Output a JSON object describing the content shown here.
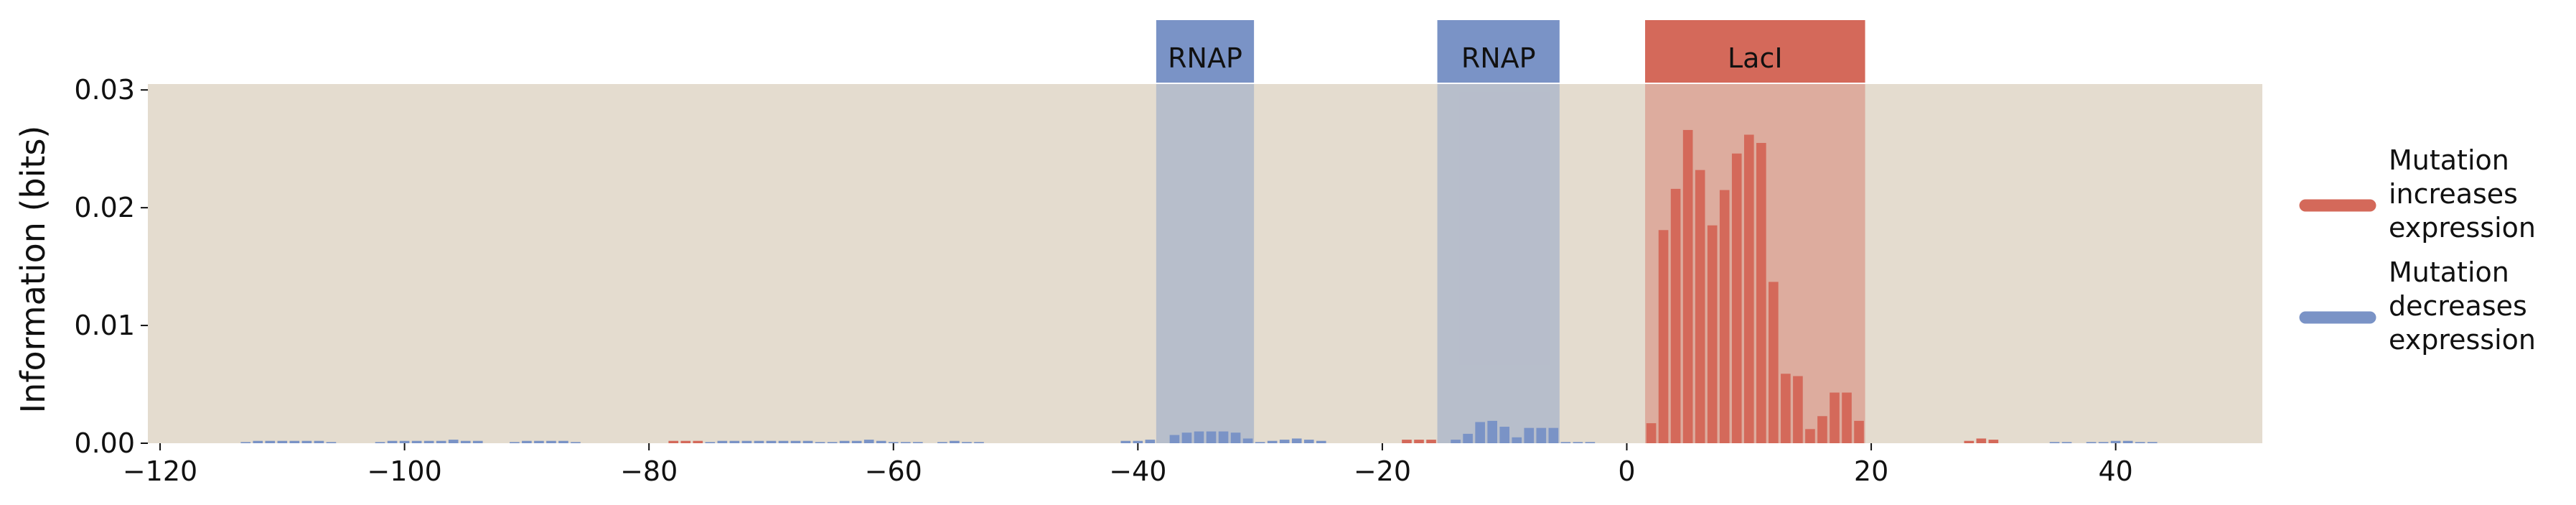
{
  "chart_data": {
    "type": "bar",
    "ylabel": "Information (bits)",
    "xlim": [
      -121,
      52
    ],
    "ylim": [
      0,
      0.0305
    ],
    "x_ticks": [
      -120,
      -100,
      -80,
      -60,
      -40,
      -20,
      0,
      20,
      40
    ],
    "x_tick_labels": [
      "−120",
      "−100",
      "−80",
      "−60",
      "−40",
      "−20",
      "0",
      "20",
      "40"
    ],
    "y_ticks": [
      0.0,
      0.01,
      0.02,
      0.03
    ],
    "y_tick_labels": [
      "0.00",
      "0.01",
      "0.02",
      "0.03"
    ],
    "colors": {
      "increase": "#d4695a",
      "decrease": "#7a93c6",
      "background": "#e4dccf"
    },
    "regions": [
      {
        "label": "RNAP",
        "start": -38.5,
        "end": -30.5,
        "color": "#7a93c6"
      },
      {
        "label": "RNAP",
        "start": -15.5,
        "end": -5.5,
        "color": "#7a93c6"
      },
      {
        "label": "LacI",
        "start": 1.5,
        "end": 19.5,
        "color": "#d4695a"
      }
    ],
    "legend": {
      "position": "right",
      "entries": [
        {
          "lines": [
            "Mutation",
            "increases",
            "expression"
          ],
          "series": "increase"
        },
        {
          "lines": [
            "Mutation",
            "decreases",
            "expression"
          ],
          "series": "decrease"
        }
      ]
    },
    "series": [
      {
        "key": "increase",
        "x": [
          -78,
          -77,
          -76,
          -18,
          -17,
          -16,
          2,
          3,
          4,
          5,
          6,
          7,
          8,
          9,
          10,
          11,
          12,
          13,
          14,
          15,
          16,
          17,
          18,
          19,
          28,
          29,
          30
        ],
        "values": [
          0.0002,
          0.0002,
          0.0002,
          0.0003,
          0.0003,
          0.0003,
          0.0017,
          0.0181,
          0.0216,
          0.0266,
          0.0232,
          0.0185,
          0.0215,
          0.0246,
          0.0262,
          0.0255,
          0.0137,
          0.0059,
          0.0057,
          0.0012,
          0.0023,
          0.0043,
          0.0043,
          0.0019,
          0.0002,
          0.0004,
          0.0003
        ]
      },
      {
        "key": "decrease",
        "x": [
          -113,
          -112,
          -111,
          -110,
          -109,
          -108,
          -107,
          -106,
          -102,
          -101,
          -100,
          -99,
          -98,
          -97,
          -96,
          -95,
          -94,
          -91,
          -90,
          -89,
          -88,
          -87,
          -86,
          -75,
          -74,
          -73,
          -72,
          -71,
          -70,
          -69,
          -68,
          -67,
          -66,
          -65,
          -64,
          -63,
          -62,
          -61,
          -60,
          -59,
          -58,
          -56,
          -55,
          -54,
          -53,
          -41,
          -40,
          -39,
          -37,
          -36,
          -35,
          -34,
          -33,
          -32,
          -31,
          -30,
          -29,
          -28,
          -27,
          -26,
          -25,
          -14,
          -13,
          -12,
          -11,
          -10,
          -9,
          -8,
          -7,
          -6,
          -5,
          -4,
          -3,
          35,
          36,
          38,
          39,
          40,
          41,
          42,
          43
        ],
        "values": [
          0.0001,
          0.0002,
          0.0002,
          0.0002,
          0.0002,
          0.0002,
          0.0002,
          0.0001,
          0.0001,
          0.0002,
          0.0002,
          0.0002,
          0.0002,
          0.0002,
          0.0003,
          0.0002,
          0.0002,
          0.0001,
          0.0002,
          0.0002,
          0.0002,
          0.0002,
          0.0001,
          0.0001,
          0.0002,
          0.0002,
          0.0002,
          0.0002,
          0.0002,
          0.0002,
          0.0002,
          0.0002,
          0.0001,
          0.0001,
          0.0002,
          0.0002,
          0.0003,
          0.0002,
          0.0001,
          0.0001,
          0.0001,
          0.0001,
          0.0002,
          0.0001,
          0.0001,
          0.0002,
          0.0002,
          0.0003,
          0.0007,
          0.0009,
          0.001,
          0.001,
          0.001,
          0.0009,
          0.0004,
          0.0001,
          0.0002,
          0.0003,
          0.0004,
          0.0003,
          0.0002,
          0.0003,
          0.0008,
          0.0018,
          0.0019,
          0.0014,
          0.0005,
          0.0013,
          0.0013,
          0.0013,
          0.0001,
          0.0001,
          0.0001,
          0.0001,
          0.0001,
          0.0001,
          0.0001,
          0.0002,
          0.0002,
          0.0001,
          0.0001
        ]
      }
    ]
  }
}
